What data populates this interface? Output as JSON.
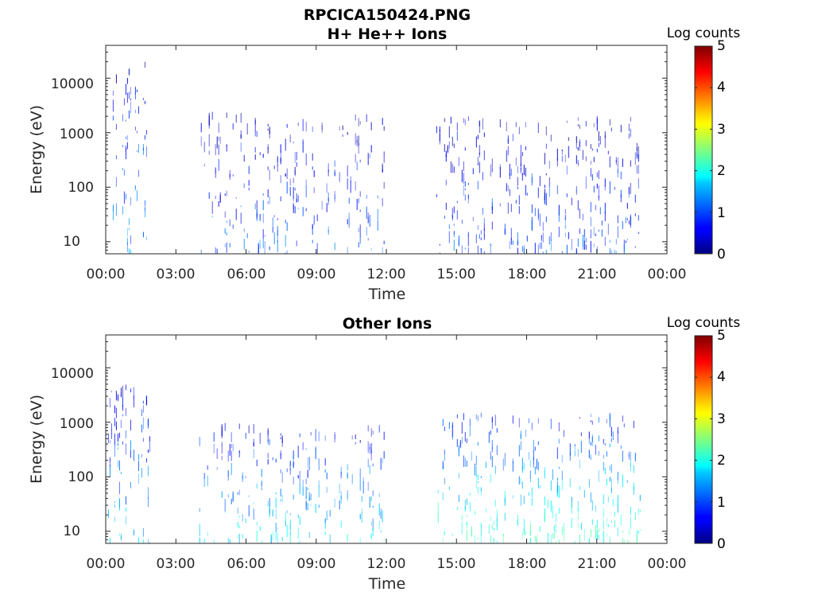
{
  "chart_data": [
    {
      "type": "heatmap",
      "title": "RPCICA150424.PNG",
      "subtitle": "H+ He++ Ions",
      "xlabel": "Time",
      "ylabel": "Energy (eV)",
      "x_ticks": [
        "00:00",
        "03:00",
        "06:00",
        "09:00",
        "12:00",
        "15:00",
        "18:00",
        "21:00",
        "00:00"
      ],
      "y_ticks": [
        "10",
        "100",
        "1000",
        "10000"
      ],
      "y_scale": "log",
      "ylim": [
        6,
        40000
      ],
      "xlim_hours": [
        0,
        24
      ],
      "colorbar": {
        "label": "Log counts",
        "ticks": [
          "0",
          "1",
          "2",
          "3",
          "4",
          "5"
        ],
        "range": [
          0,
          5
        ],
        "colormap": "jet"
      },
      "data_intervals_hours": [
        [
          0.1,
          1.9
        ],
        [
          4.0,
          11.9
        ],
        [
          14.0,
          22.9
        ]
      ],
      "bands": [
        {
          "t0": 0.1,
          "t1": 1.9,
          "e_low": 6,
          "e_high": 20000,
          "level": 1.0
        },
        {
          "t0": 4.0,
          "t1": 11.9,
          "e_low": 6,
          "e_high": 2500,
          "level": 0.8
        },
        {
          "t0": 14.0,
          "t1": 22.9,
          "e_low": 6,
          "e_high": 2000,
          "level": 0.8
        }
      ],
      "grid": false
    },
    {
      "type": "heatmap",
      "title": "Other Ions",
      "xlabel": "Time",
      "ylabel": "Energy (eV)",
      "x_ticks": [
        "00:00",
        "03:00",
        "06:00",
        "09:00",
        "12:00",
        "15:00",
        "18:00",
        "21:00",
        "00:00"
      ],
      "y_ticks": [
        "10",
        "100",
        "1000",
        "10000"
      ],
      "y_scale": "log",
      "ylim": [
        6,
        40000
      ],
      "xlim_hours": [
        0,
        24
      ],
      "colorbar": {
        "label": "Log counts",
        "ticks": [
          "0",
          "1",
          "2",
          "3",
          "4",
          "5"
        ],
        "range": [
          0,
          5
        ],
        "colormap": "jet"
      },
      "data_intervals_hours": [
        [
          0.1,
          1.9
        ],
        [
          4.0,
          11.9
        ],
        [
          14.0,
          22.9
        ]
      ],
      "bands": [
        {
          "t0": 0.1,
          "t1": 1.9,
          "e_low": 6,
          "e_high": 5000,
          "level": 1.3
        },
        {
          "t0": 4.0,
          "t1": 11.9,
          "e_low": 6,
          "e_high": 1000,
          "level": 1.4
        },
        {
          "t0": 14.0,
          "t1": 22.9,
          "e_low": 6,
          "e_high": 1500,
          "level": 1.8
        }
      ],
      "grid": false
    }
  ]
}
